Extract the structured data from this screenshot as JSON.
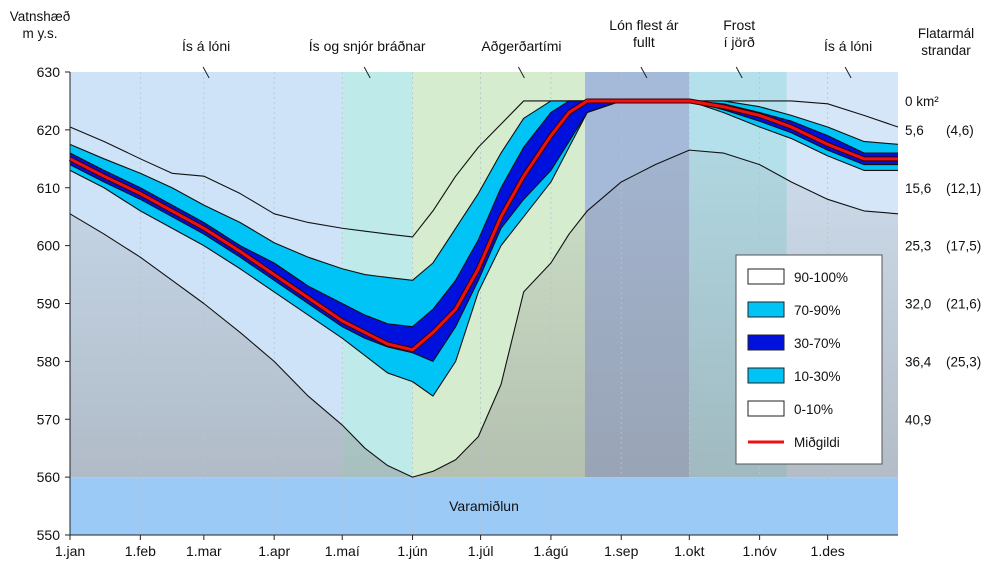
{
  "chart_data": {
    "type": "area",
    "y_axis_title_line1": "Vatnshæð",
    "y_axis_title_line2": "m y.s.",
    "right_axis_title_line1": "Flatarmál",
    "right_axis_title_line2": "strandar",
    "ylim": [
      550,
      630
    ],
    "y_ticks": [
      550,
      560,
      570,
      580,
      590,
      600,
      610,
      620,
      630
    ],
    "x_range_days": [
      0,
      365
    ],
    "x_ticks": [
      {
        "day": 0,
        "label": "1.jan"
      },
      {
        "day": 31,
        "label": "1.feb"
      },
      {
        "day": 59,
        "label": "1.mar"
      },
      {
        "day": 90,
        "label": "1.apr"
      },
      {
        "day": 120,
        "label": "1.maí"
      },
      {
        "day": 151,
        "label": "1.jún"
      },
      {
        "day": 181,
        "label": "1.júl"
      },
      {
        "day": 212,
        "label": "1.ágú"
      },
      {
        "day": 243,
        "label": "1.sep"
      },
      {
        "day": 273,
        "label": "1.okt"
      },
      {
        "day": 304,
        "label": "1.nóv"
      },
      {
        "day": 334,
        "label": "1.des"
      }
    ],
    "right_labels": [
      {
        "level": 625,
        "text": "0 km²"
      },
      {
        "level": 620,
        "text": "5,6",
        "paren": "(4,6)"
      },
      {
        "level": 610,
        "text": "15,6",
        "paren": "(12,1)"
      },
      {
        "level": 600,
        "text": "25,3",
        "paren": "(17,5)"
      },
      {
        "level": 590,
        "text": "32,0",
        "paren": "(21,6)"
      },
      {
        "level": 580,
        "text": "36,4",
        "paren": "(25,3)"
      },
      {
        "level": 570,
        "text": "40,9"
      }
    ],
    "periods": [
      {
        "start": 0,
        "end": 120,
        "color": "#cfe3f8",
        "label": "Ís á lóni",
        "label_day": 60
      },
      {
        "start": 120,
        "end": 151,
        "color": "#bfeaea",
        "label": "Ís og snjór bráðnar",
        "label_day": 131
      },
      {
        "start": 151,
        "end": 227,
        "color": "#d6eccf",
        "label": "Aðgerðartími",
        "label_day": 199
      },
      {
        "start": 227,
        "end": 273,
        "color": "#a5b9d8",
        "label_line1": "Lón flest ár",
        "label_line2": "fullt",
        "label_day": 253
      },
      {
        "start": 273,
        "end": 316,
        "color": "#b4e0ec",
        "label_line1": "Frost",
        "label_line2": "í jörð",
        "label_day": 295
      },
      {
        "start": 316,
        "end": 365,
        "color": "#d5e6f8",
        "label": "Ís á lóni",
        "label_day": 343
      }
    ],
    "reserve_zone": {
      "from": 550,
      "to": 560,
      "label": "Varamiðlun",
      "color": "#9ccaf6"
    },
    "x": [
      0,
      15,
      31,
      45,
      59,
      75,
      90,
      105,
      120,
      130,
      140,
      151,
      160,
      170,
      180,
      190,
      200,
      212,
      220,
      228,
      243,
      258,
      273,
      288,
      304,
      318,
      334,
      350,
      365
    ],
    "percentiles": {
      "p0": [
        605.5,
        602,
        598,
        594,
        590,
        585,
        580,
        574,
        569,
        565,
        562,
        560,
        561,
        563,
        567,
        576,
        592,
        597,
        602,
        606,
        611,
        614,
        616.5,
        616,
        614,
        611,
        608,
        606,
        605.5
      ],
      "p10": [
        613,
        610,
        606,
        603,
        600,
        596,
        592,
        588,
        584,
        581,
        578,
        576.5,
        574,
        580,
        592,
        600,
        605,
        611,
        617,
        623,
        625,
        625,
        625,
        623,
        620.5,
        618.5,
        615.5,
        613,
        613
      ],
      "p30": [
        614,
        611,
        608,
        605,
        602,
        598,
        594,
        590,
        586,
        584,
        582.5,
        581.5,
        580,
        586,
        594,
        603,
        608,
        613,
        618,
        623,
        625,
        625,
        625,
        623.5,
        621.5,
        619.5,
        616.5,
        614,
        614
      ],
      "p50": [
        615,
        612,
        609,
        606,
        603,
        599,
        595,
        591,
        587,
        585,
        583,
        582,
        585,
        589,
        596,
        605,
        612,
        619,
        623,
        625,
        625,
        625,
        625,
        624,
        622.5,
        620.5,
        617.5,
        615,
        615
      ],
      "p70": [
        616,
        613,
        610,
        607,
        604,
        600,
        597,
        593,
        590,
        588,
        586.5,
        586,
        589,
        594,
        601,
        610,
        617,
        623,
        625,
        625,
        625,
        625,
        625,
        624.5,
        623,
        621.5,
        619,
        616,
        616
      ],
      "p90": [
        617.5,
        615,
        612.5,
        610,
        607,
        604,
        600.5,
        598,
        596,
        595,
        594.5,
        594,
        597,
        603,
        609,
        616,
        622,
        625,
        625,
        625,
        625,
        625,
        625,
        625,
        624,
        622.5,
        620.5,
        618,
        617.5
      ],
      "p100": [
        620.5,
        618,
        615,
        612.5,
        612,
        609,
        605.5,
        604,
        603,
        602.5,
        602,
        601.5,
        606,
        612,
        617,
        621,
        625,
        625,
        625,
        625,
        625,
        625,
        625,
        625,
        625,
        625,
        624.5,
        622.5,
        620.5
      ]
    },
    "legend": [
      {
        "label": "90-100%",
        "kind": "box",
        "fill": "#ffffff"
      },
      {
        "label": "70-90%",
        "kind": "box",
        "fill": "#00c4f5"
      },
      {
        "label": "30-70%",
        "kind": "box",
        "fill": "#0011dd"
      },
      {
        "label": "10-30%",
        "kind": "box",
        "fill": "#00c4f5"
      },
      {
        "label": "0-10%",
        "kind": "box",
        "fill": "#ffffff"
      },
      {
        "label": "Miðgildi",
        "kind": "line",
        "color": "#ee1111"
      }
    ],
    "legend_placement": "right-center",
    "colors": {
      "band_outer": "#00c4f5",
      "band_inner": "#0011dd",
      "median": "#ee1111",
      "gray_overlay": "#8a8a8a"
    }
  }
}
